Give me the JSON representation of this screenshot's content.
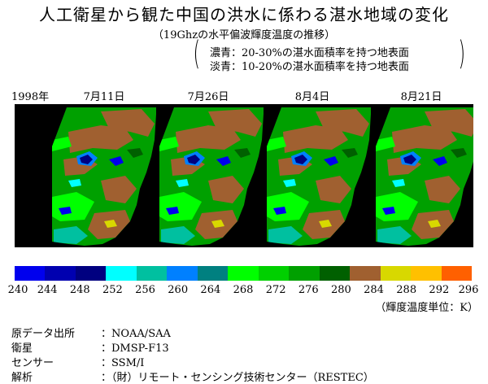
{
  "title": "人工衛星から観た中国の洪水に係わる湛水地域の変化",
  "subtitle": "（19Ghzの水平偏波輝度温度の推移）",
  "legend_note": {
    "dark": "濃青：20-30%の湛水面積率を持つ地表面",
    "light": "淡青：10-20%の湛水面積率を持つ地表面"
  },
  "year_label": "1998年",
  "dates": [
    "7月11日",
    "7月26日",
    "8月4日",
    "8月21日"
  ],
  "colorbar": {
    "ticks": [
      "240",
      "244",
      "248",
      "252",
      "256",
      "260",
      "264",
      "268",
      "272",
      "276",
      "280",
      "284",
      "288",
      "292",
      "296"
    ],
    "colors": [
      "#0000ee",
      "#0000b0",
      "#000080",
      "#00ffff",
      "#00c0a0",
      "#0080ff",
      "#008080",
      "#00ff00",
      "#00d000",
      "#00a000",
      "#006000",
      "#a06030",
      "#d8d800",
      "#ffc000",
      "#ff6000"
    ]
  },
  "unit_label": "（輝度温度単位：K）",
  "info": [
    {
      "key": "原データ出所",
      "value": "：NOAA/SAA"
    },
    {
      "key": "衛星",
      "value": "：DMSP-F13"
    },
    {
      "key": "センサー",
      "value": "：SSM/I"
    },
    {
      "key": "解析",
      "value": "：（財）リモート・センシング技術センター（RESTEC）"
    }
  ]
}
